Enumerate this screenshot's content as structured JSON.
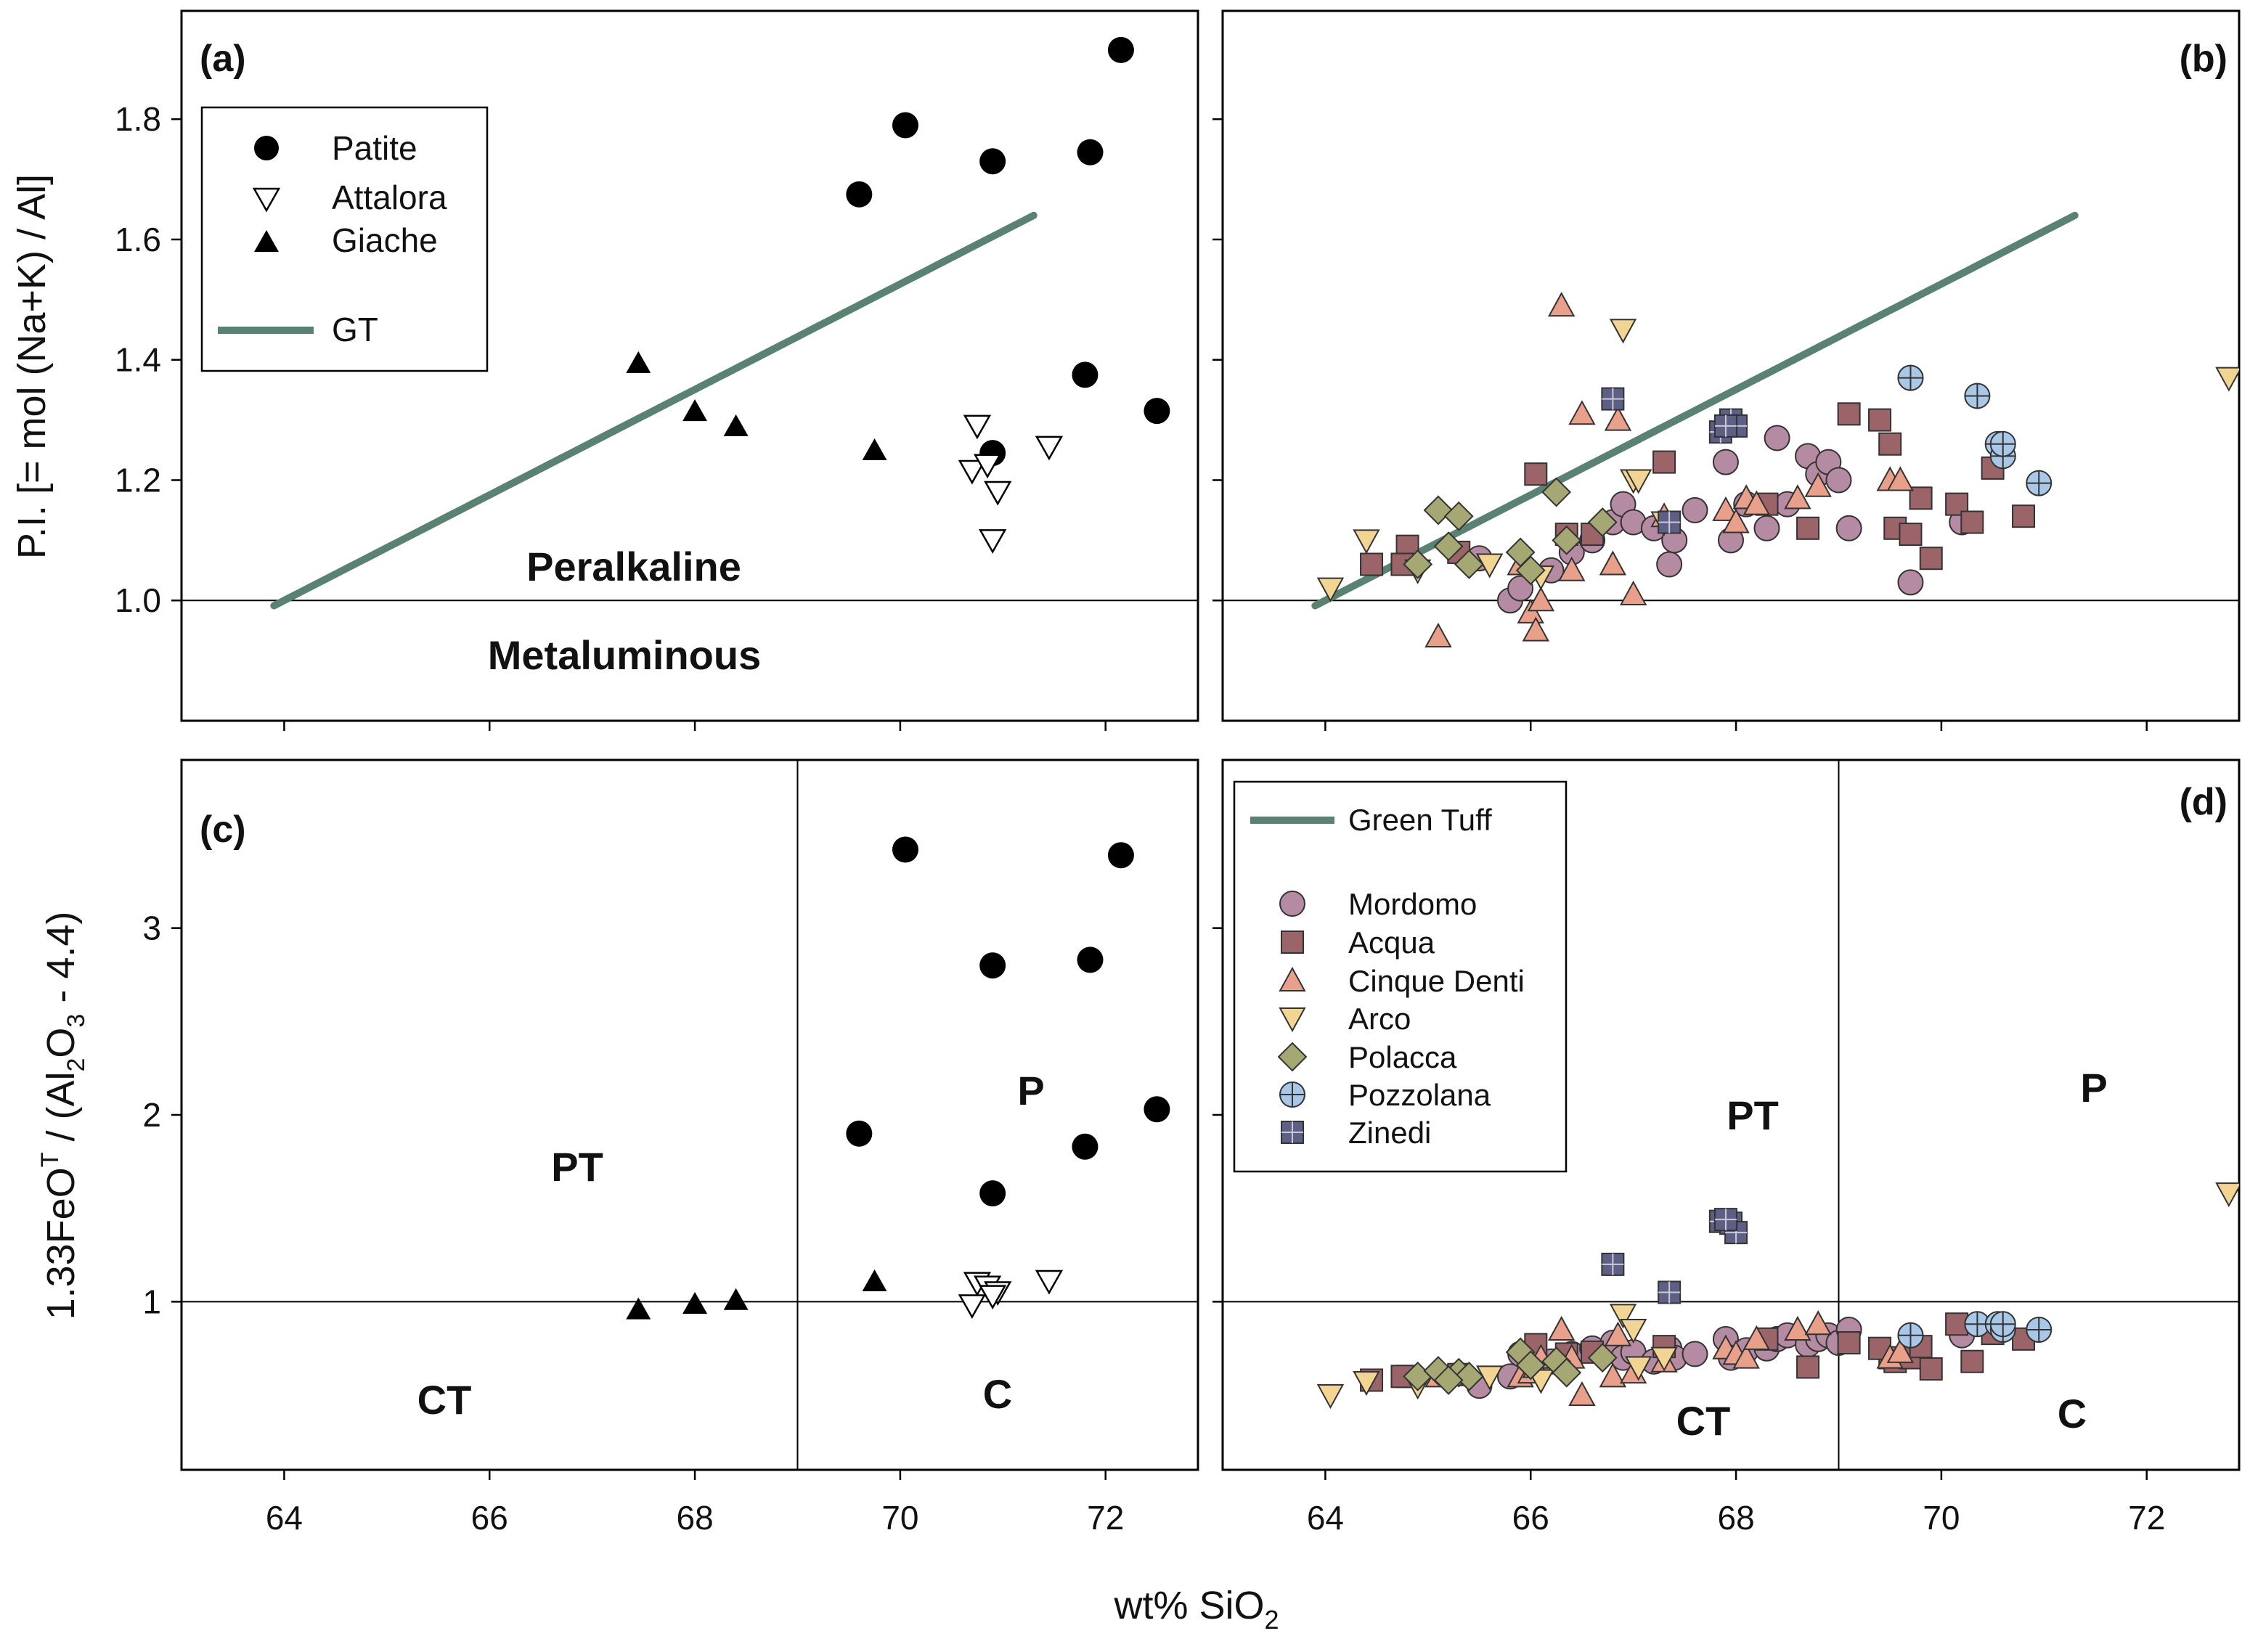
{
  "chart_data": {
    "type": "scatter",
    "xlabel_prefix": "wt% SiO",
    "xlabel_sub": "2",
    "xlim": [
      63,
      72.9
    ],
    "xticks": [
      64,
      66,
      68,
      70,
      72
    ],
    "top_ylabel": "P.I. [= mol (Na+K) / Al]",
    "top_ylim": [
      0.8,
      1.98
    ],
    "top_yticks": [
      "1.0",
      "1.2",
      "1.4",
      "1.6",
      "1.8"
    ],
    "bottom_ylabel": {
      "a": "1.33FeO",
      "sup": "T",
      "b": " / (Al",
      "sub2": "2",
      "c": "O",
      "sub3": "3",
      "d": " - 4.4)"
    },
    "bottom_ylim": [
      0.1,
      3.9
    ],
    "bottom_yticks": [
      "1",
      "2",
      "3"
    ],
    "panels": {
      "a": {
        "label": "(a)",
        "regions": [
          "Peralkaline",
          "Metaluminous"
        ]
      },
      "b": {
        "label": "(b)"
      },
      "c": {
        "label": "(c)",
        "regions": [
          "PT",
          "P",
          "CT",
          "C"
        ]
      },
      "d": {
        "label": "(d)",
        "regions": [
          "PT",
          "P",
          "CT",
          "C"
        ]
      }
    },
    "legend_a": [
      "Patite",
      "Attalora",
      "Giache",
      "GT"
    ],
    "legend_d": [
      "Green Tuff",
      "Mordomo",
      "Acqua",
      "Cinque Denti",
      "Arco",
      "Polacca",
      "Pozzolana",
      "Zinedi"
    ],
    "gt_line": {
      "name": "GT",
      "x": [
        63.9,
        71.3
      ]
    },
    "colors": {
      "gt": "#5a8272",
      "mordomo": "#b58aa3",
      "acqua": "#9a6468",
      "cinque": "#e8a08a",
      "arco": "#f2d592",
      "polacca": "#a5a873",
      "pozzolana": "#a9c8e8",
      "zinedi": "#5d5f84"
    },
    "series_ac": [
      {
        "name": "Patite",
        "marker": "circle-filled",
        "x": [
          69.6,
          70.05,
          70.9,
          71.85,
          72.15,
          70.9,
          71.8,
          72.5
        ],
        "pi": [
          1.675,
          1.79,
          1.73,
          1.745,
          1.915,
          1.245,
          1.375,
          1.315
        ],
        "fe": [
          1.9,
          3.42,
          2.8,
          2.83,
          3.39,
          1.58,
          1.83,
          2.03
        ]
      },
      {
        "name": "Attalora",
        "marker": "triangle-down-open",
        "x": [
          70.7,
          70.75,
          70.85,
          70.95,
          70.9,
          71.45
        ],
        "pi": [
          1.215,
          1.29,
          1.225,
          1.18,
          1.1,
          1.255
        ],
        "fe": [
          0.98,
          1.1,
          1.08,
          1.05,
          1.03,
          1.11
        ]
      },
      {
        "name": "Giache",
        "marker": "triangle-up-filled",
        "x": [
          67.45,
          68.0,
          68.4,
          69.75
        ],
        "pi": [
          1.395,
          1.315,
          1.29,
          1.25
        ],
        "fe": [
          0.96,
          0.99,
          1.01,
          1.11
        ]
      }
    ],
    "series_bd": [
      {
        "name": "Mordomo",
        "marker": "circle",
        "x": [
          65.5,
          65.8,
          65.9,
          66.2,
          66.4,
          66.6,
          66.8,
          66.9,
          67.0,
          67.2,
          67.35,
          67.4,
          67.6,
          67.9,
          67.95,
          68.1,
          68.3,
          68.4,
          68.5,
          68.7,
          68.8,
          68.9,
          69.0,
          69.1,
          69.7,
          70.2
        ],
        "pi": [
          1.07,
          1.0,
          1.02,
          1.05,
          1.08,
          1.1,
          1.13,
          1.16,
          1.13,
          1.12,
          1.06,
          1.1,
          1.15,
          1.23,
          1.1,
          1.16,
          1.12,
          1.27,
          1.16,
          1.24,
          1.21,
          1.23,
          1.2,
          1.12,
          1.03,
          1.13
        ],
        "fe": [
          0.55,
          0.6,
          0.72,
          0.68,
          0.72,
          0.75,
          0.78,
          0.7,
          0.73,
          0.68,
          0.75,
          0.7,
          0.72,
          0.8,
          0.7,
          0.74,
          0.75,
          0.8,
          0.82,
          0.77,
          0.8,
          0.82,
          0.78,
          0.85,
          0.76,
          0.82
        ]
      },
      {
        "name": "Acqua",
        "marker": "square",
        "x": [
          64.45,
          64.8,
          64.75,
          65.3,
          66.05,
          66.35,
          66.6,
          67.3,
          68.3,
          68.7,
          69.1,
          69.5,
          69.55,
          69.7,
          69.8,
          69.9,
          70.15,
          70.3,
          70.5,
          70.8,
          69.4
        ],
        "pi": [
          1.06,
          1.09,
          1.06,
          1.08,
          1.21,
          1.11,
          1.11,
          1.23,
          1.16,
          1.12,
          1.31,
          1.26,
          1.12,
          1.11,
          1.17,
          1.07,
          1.16,
          1.13,
          1.22,
          1.14,
          1.3
        ],
        "fe": [
          0.58,
          0.6,
          0.6,
          0.61,
          0.77,
          0.72,
          0.73,
          0.76,
          0.8,
          0.65,
          0.78,
          0.7,
          0.68,
          0.7,
          0.76,
          0.64,
          0.88,
          0.68,
          0.83,
          0.8,
          0.75
        ]
      },
      {
        "name": "Cinque Denti",
        "marker": "triangle-up",
        "x": [
          65.1,
          65.9,
          66.0,
          66.05,
          66.1,
          66.3,
          66.5,
          66.4,
          66.8,
          66.85,
          67.0,
          67.3,
          67.9,
          68.0,
          68.1,
          68.2,
          68.6,
          68.8,
          69.5,
          69.6
        ],
        "pi": [
          0.94,
          1.06,
          0.98,
          0.95,
          1.0,
          1.49,
          1.31,
          1.05,
          1.06,
          1.3,
          1.01,
          1.14,
          1.15,
          1.13,
          1.17,
          1.16,
          1.17,
          1.19,
          1.2,
          1.2
        ],
        "fe": [
          0.6,
          0.6,
          0.62,
          0.65,
          0.7,
          0.85,
          0.5,
          0.7,
          0.6,
          0.82,
          0.62,
          0.68,
          0.75,
          0.72,
          0.7,
          0.8,
          0.85,
          0.88,
          0.7,
          0.73
        ]
      },
      {
        "name": "Arco",
        "marker": "triangle-down",
        "x": [
          64.05,
          64.4,
          64.9,
          65.6,
          66.1,
          66.9,
          67.0,
          67.3,
          67.05,
          72.8
        ],
        "pi": [
          1.02,
          1.1,
          1.05,
          1.06,
          1.04,
          1.45,
          1.2,
          1.13,
          1.2,
          1.37
        ],
        "fe": [
          0.5,
          0.57,
          0.55,
          0.6,
          0.58,
          0.93,
          0.85,
          0.7,
          0.65,
          1.58
        ]
      },
      {
        "name": "Polacca",
        "marker": "diamond",
        "x": [
          64.9,
          65.1,
          65.3,
          65.4,
          65.9,
          65.2,
          66.25,
          66.7,
          66.35,
          66.0
        ],
        "pi": [
          1.06,
          1.15,
          1.14,
          1.06,
          1.08,
          1.09,
          1.18,
          1.13,
          1.1,
          1.05
        ],
        "fe": [
          0.6,
          0.63,
          0.62,
          0.6,
          0.73,
          0.58,
          0.68,
          0.7,
          0.62,
          0.66
        ]
      },
      {
        "name": "Pozzolana",
        "marker": "circle-cross",
        "x": [
          69.7,
          70.35,
          70.55,
          70.6,
          70.95,
          69.7,
          70.6
        ],
        "pi": [
          1.37,
          1.34,
          1.26,
          1.24,
          1.195,
          1.37,
          1.26
        ],
        "fe": [
          0.82,
          0.88,
          0.88,
          0.85,
          0.85,
          0.82,
          0.88
        ]
      },
      {
        "name": "Zinedi",
        "marker": "square-cross",
        "x": [
          66.8,
          67.35,
          67.85,
          67.95,
          68.0,
          67.9
        ],
        "pi": [
          1.335,
          1.13,
          1.28,
          1.3,
          1.29,
          1.29
        ],
        "fe": [
          1.2,
          1.05,
          1.43,
          1.42,
          1.37,
          1.44
        ]
      }
    ],
    "sio2_cut": 69.0,
    "ref_value": 1.0
  }
}
